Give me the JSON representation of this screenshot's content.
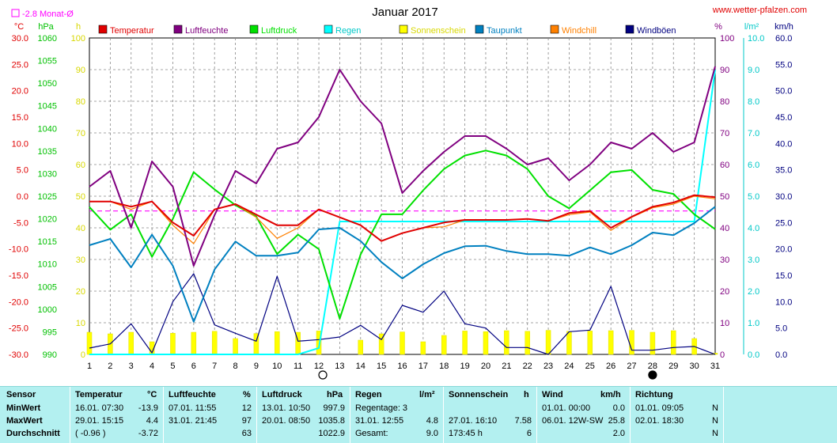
{
  "title": "Januar 2017",
  "website": "www.wetter-pfalzen.com",
  "monthly_marker_label": "-2.8 Monat-Ø",
  "units": {
    "temp": "°C",
    "pressure": "hPa",
    "sun": "h",
    "humidity": "%",
    "rain": "l/m²",
    "wind": "km/h"
  },
  "legend": [
    {
      "label": "Temperatur",
      "color": "#e00000"
    },
    {
      "label": "Luftfeuchte",
      "color": "#800080"
    },
    {
      "label": "Luftdruck",
      "color": "#00e000"
    },
    {
      "label": "Regen",
      "color": "#00ffff"
    },
    {
      "label": "Sonnenschein",
      "color": "#ffff00"
    },
    {
      "label": "Taupunkt",
      "color": "#0080c0"
    },
    {
      "label": "Windchill",
      "color": "#ff8000"
    },
    {
      "label": "Windböen",
      "color": "#000080"
    }
  ],
  "chart_data": {
    "type": "line",
    "title": "Januar 2017",
    "x": [
      1,
      2,
      3,
      4,
      5,
      6,
      7,
      8,
      9,
      10,
      11,
      12,
      13,
      14,
      15,
      16,
      17,
      18,
      19,
      20,
      21,
      22,
      23,
      24,
      25,
      26,
      27,
      28,
      29,
      30,
      31
    ],
    "axes": {
      "temp": {
        "unit": "°C",
        "range": [
          -30,
          30
        ],
        "ticks": [
          "30.0",
          "25.0",
          "20.0",
          "15.0",
          "10.0",
          "5.0",
          "0.0",
          "-5.0",
          "-10.0",
          "-15.0",
          "-20.0",
          "-25.0",
          "-30.0"
        ]
      },
      "pressure": {
        "unit": "hPa",
        "range": [
          990,
          1060
        ],
        "ticks": [
          "1060",
          "1055",
          "1050",
          "1045",
          "1040",
          "1035",
          "1030",
          "1025",
          "1020",
          "1015",
          "1010",
          "1005",
          "1000",
          "995",
          "990"
        ]
      },
      "sun": {
        "unit": "h",
        "range": [
          0,
          100
        ],
        "ticks": [
          "100",
          "90",
          "80",
          "70",
          "60",
          "50",
          "40",
          "30",
          "20",
          "10",
          "0"
        ]
      },
      "humidity": {
        "unit": "%",
        "range": [
          0,
          100
        ],
        "ticks": [
          "100",
          "90",
          "80",
          "70",
          "60",
          "50",
          "40",
          "30",
          "20",
          "10",
          "0"
        ]
      },
      "rain": {
        "unit": "l/m²",
        "range": [
          0,
          10
        ],
        "ticks": [
          "10.0",
          "9.0",
          "8.0",
          "7.0",
          "6.0",
          "5.0",
          "4.0",
          "3.0",
          "2.0",
          "1.0",
          "0.0"
        ]
      },
      "wind": {
        "unit": "km/h",
        "range": [
          0,
          60
        ],
        "ticks": [
          "60.0",
          "55.0",
          "50.0",
          "45.0",
          "40.0",
          "35.0",
          "30.0",
          "25.0",
          "20.0",
          "15.0",
          "10.0",
          "5.0",
          "0.0"
        ]
      }
    },
    "monthly_avg_temp": -2.8,
    "series": [
      {
        "name": "Temperatur",
        "axis": "temp",
        "color": "#e00000",
        "values": [
          -1.0,
          -1.0,
          -2.0,
          -1.0,
          -5.0,
          -7.5,
          -2.5,
          -1.5,
          -3.5,
          -5.5,
          -5.5,
          -2.5,
          -4.0,
          -5.5,
          -8.5,
          -7.0,
          -6.0,
          -5.0,
          -4.5,
          -4.5,
          -4.5,
          -4.3,
          -4.7,
          -3.2,
          -2.8,
          -6.0,
          -3.9,
          -2.0,
          -1.2,
          0.2,
          -0.2
        ]
      },
      {
        "name": "Windchill",
        "axis": "temp",
        "color": "#ff8000",
        "values": [
          -1.0,
          -1.0,
          -2.5,
          -1.0,
          -5.5,
          -9.0,
          -2.5,
          -1.5,
          -4.0,
          -8.0,
          -6.0,
          -2.5,
          -4.0,
          -5.5,
          -8.5,
          -7.0,
          -6.0,
          -5.8,
          -4.5,
          -4.5,
          -4.5,
          -4.3,
          -4.7,
          -3.5,
          -3.0,
          -6.5,
          -4.0,
          -2.2,
          -1.5,
          0.0,
          -0.5
        ]
      },
      {
        "name": "Taupunkt",
        "axis": "temp",
        "color": "#0080c0",
        "values": [
          -9.3,
          -8.1,
          -13.5,
          -7.3,
          -13.2,
          -23.8,
          -13.9,
          -8.6,
          -11.3,
          -11.3,
          -10.7,
          -6.3,
          -6.0,
          -8.5,
          -12.5,
          -15.6,
          -12.9,
          -10.8,
          -9.5,
          -9.4,
          -10.4,
          -11.0,
          -11.0,
          -11.3,
          -9.7,
          -11.0,
          -9.3,
          -6.9,
          -7.4,
          -5.1,
          -2.0
        ]
      },
      {
        "name": "Luftdruck",
        "axis": "pressure",
        "color": "#00e000",
        "values": [
          1022.6,
          1017.6,
          1021.0,
          1011.6,
          1020.0,
          1030.3,
          1026.5,
          1023.0,
          1020.5,
          1012.2,
          1016.5,
          1013.3,
          997.9,
          1012.1,
          1021.0,
          1021.0,
          1026.3,
          1031.0,
          1034.0,
          1035.1,
          1034.0,
          1031.0,
          1025.0,
          1022.3,
          1026.3,
          1030.3,
          1030.8,
          1026.4,
          1025.5,
          1021.0,
          1017.7
        ]
      },
      {
        "name": "Luftfeuchte",
        "axis": "humidity",
        "color": "#800080",
        "values": [
          53,
          58,
          40,
          61,
          53,
          28,
          44,
          58,
          54,
          65,
          67,
          75,
          90,
          80,
          73,
          51,
          58,
          64,
          69,
          69,
          65,
          60,
          62,
          55,
          60,
          67,
          65,
          70,
          64,
          67,
          91
        ]
      },
      {
        "name": "Regen",
        "axis": "rain",
        "color": "#00ffff",
        "values": [
          0,
          0,
          0,
          0,
          0,
          0,
          0,
          0,
          0,
          0,
          0,
          0.2,
          4.2,
          4.2,
          4.2,
          4.2,
          4.2,
          4.2,
          4.2,
          4.2,
          4.2,
          4.2,
          4.2,
          4.2,
          4.2,
          4.2,
          4.2,
          4.2,
          4.2,
          4.2,
          9.0
        ]
      },
      {
        "name": "Windböen",
        "axis": "wind",
        "color": "#000080",
        "values": [
          1.2,
          2.0,
          5.8,
          0.3,
          10.0,
          15.3,
          5.6,
          4.0,
          2.5,
          14.8,
          2.5,
          2.8,
          3.3,
          5.5,
          2.8,
          9.3,
          8.0,
          12.0,
          5.8,
          5.0,
          1.3,
          1.3,
          0,
          4.3,
          4.6,
          12.9,
          0.8,
          0.8,
          1.3,
          1.5,
          0
        ]
      },
      {
        "name": "Sonnenschein",
        "axis": "sun",
        "color": "#ffff00",
        "type": "bar",
        "values": [
          7,
          6.5,
          7,
          4,
          6.7,
          7,
          7.3,
          5,
          6.6,
          7.2,
          7,
          7.4,
          0,
          4.5,
          6.5,
          7.1,
          4,
          6,
          7.4,
          7.2,
          7.5,
          7.3,
          7.6,
          7.3,
          7.4,
          7.5,
          7.58,
          7,
          7.5,
          5,
          0.4
        ]
      }
    ],
    "sun_symbols": [
      {
        "day": 12,
        "symbol": "open-circle"
      },
      {
        "day": 28,
        "symbol": "filled-circle"
      }
    ]
  },
  "stats": {
    "headers": [
      {
        "label": "Sensor",
        "unit": ""
      },
      {
        "label": "Temperatur",
        "unit": "°C"
      },
      {
        "label": "Luftfeuchte",
        "unit": "%"
      },
      {
        "label": "Luftdruck",
        "unit": "hPa"
      },
      {
        "label": "Regen",
        "unit": "l/m²"
      },
      {
        "label": "Sonnenschein",
        "unit": "h"
      },
      {
        "label": "Wind",
        "unit": "km/h"
      },
      {
        "label": "Richtung",
        "unit": ""
      }
    ],
    "min": {
      "label": "MinWert",
      "temp_time": "16.01.  07:30",
      "temp_val": "-13.9",
      "hum_time": "07.01.  11:55",
      "hum_val": "12",
      "press_time": "13.01.  10:50",
      "press_val": "997.9",
      "rain_text": "Regentage: 3",
      "rain_val": "",
      "sun_time": "",
      "sun_val": "",
      "wind_time": "01.01.  00:00",
      "wind_val": "0.0",
      "dir_time": "01.01.  09:05",
      "dir_val": "N"
    },
    "max": {
      "label": "MaxWert",
      "temp_time": "29.01.  15:15",
      "temp_val": "4.4",
      "hum_time": "31.01.  21:45",
      "hum_val": "97",
      "press_time": "20.01.  08:50",
      "press_val": "1035.8",
      "rain_text": "31.01.  12:55",
      "rain_val": "4.8",
      "sun_time": "27.01.  16:10",
      "sun_val": "7.58",
      "wind_time": "06.01.  12W-SW",
      "wind_val": "25.8",
      "dir_time": "02.01.  18:30",
      "dir_val": "N"
    },
    "avg": {
      "label": "Durchschnitt",
      "temp_time": "( -0.96 )",
      "temp_val": "-3.72",
      "hum_time": "",
      "hum_val": "63",
      "press_time": "",
      "press_val": "1022.9",
      "rain_text": "Gesamt:",
      "rain_val": "9.0",
      "sun_time": "173:45 h",
      "sun_val": "6",
      "wind_time": "",
      "wind_val": "2.0",
      "dir_time": "",
      "dir_val": "N"
    }
  }
}
